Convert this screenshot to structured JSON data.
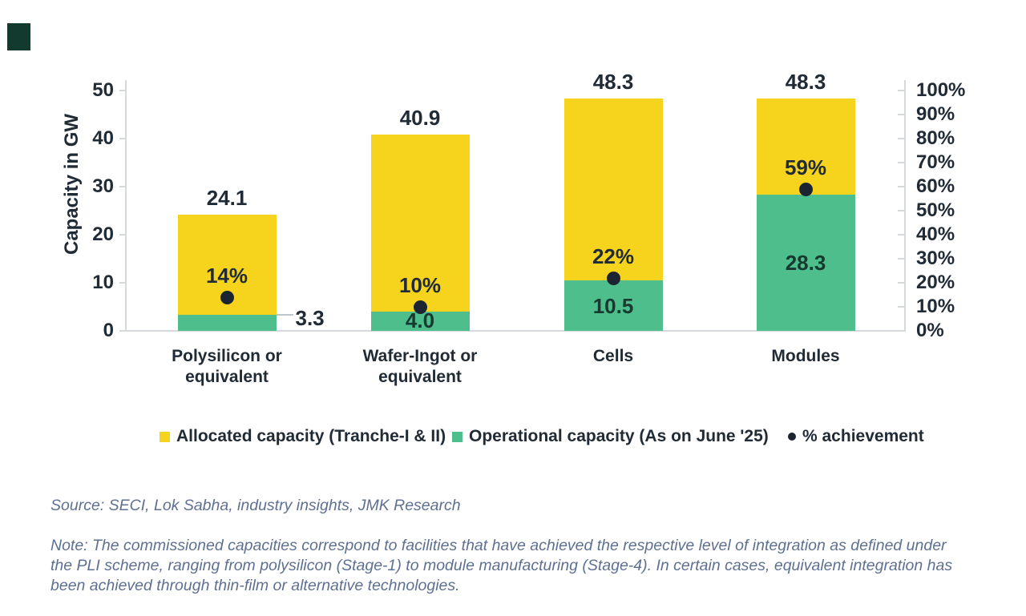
{
  "colors": {
    "allocated_yellow": "#F6D41E",
    "operational_green": "#4EBE8C",
    "achievement_dot": "#1B2430",
    "text_dark": "#212B36",
    "in_green_label": "#17392F",
    "axis_line": "#D5D9DE",
    "leader_line": "#BFC5CC",
    "footer_text": "#5E7091",
    "logo_mark": "#123A2F"
  },
  "chart_data": {
    "type": "bar",
    "subtype": "stacked-overlay-with-achievement-dots",
    "title": "",
    "ylabel": "Capacity in GW",
    "ylim": [
      0,
      50
    ],
    "yticks": [
      0,
      10,
      20,
      30,
      40,
      50
    ],
    "y2lim": [
      0,
      100
    ],
    "y2ticks": [
      "0%",
      "10%",
      "20%",
      "30%",
      "40%",
      "50%",
      "60%",
      "70%",
      "80%",
      "90%",
      "100%"
    ],
    "grid": false,
    "legend_position": "bottom",
    "categories": [
      "Polysilicon or\nequivalent",
      "Wafer-Ingot or\nequivalent",
      "Cells",
      "Modules"
    ],
    "series": [
      {
        "name": "Allocated capacity (Tranche-I & II)",
        "marker": "square",
        "color": "#F6D41E",
        "values": [
          24.1,
          40.9,
          48.3,
          48.3
        ]
      },
      {
        "name": "Operational capacity (As on June '25)",
        "marker": "square",
        "color": "#4EBE8C",
        "values": [
          3.3,
          4.0,
          10.5,
          28.3
        ]
      },
      {
        "name": "% achievement",
        "marker": "dot",
        "color": "#1B2430",
        "values": [
          14,
          10,
          22,
          59
        ]
      }
    ],
    "allocated_labels": [
      "24.1",
      "40.9",
      "48.3",
      "48.3"
    ],
    "operational_labels": [
      "3.3",
      "4.0",
      "10.5",
      "28.3"
    ],
    "operational_label_placement": [
      "outside-right",
      "inside-bottom",
      "inside-center",
      "inside-center"
    ],
    "achievement_labels": [
      "14%",
      "10%",
      "22%",
      "59%"
    ]
  },
  "footer": {
    "source": "Source: SECI, Lok Sabha, industry insights, JMK Research",
    "note": "Note: The commissioned capacities correspond to facilities that have achieved the respective level of integration as defined under\nthe PLI scheme, ranging from polysilicon (Stage-1) to module manufacturing (Stage-4). In certain cases, equivalent integration has\nbeen achieved through thin-film or alternative technologies."
  }
}
